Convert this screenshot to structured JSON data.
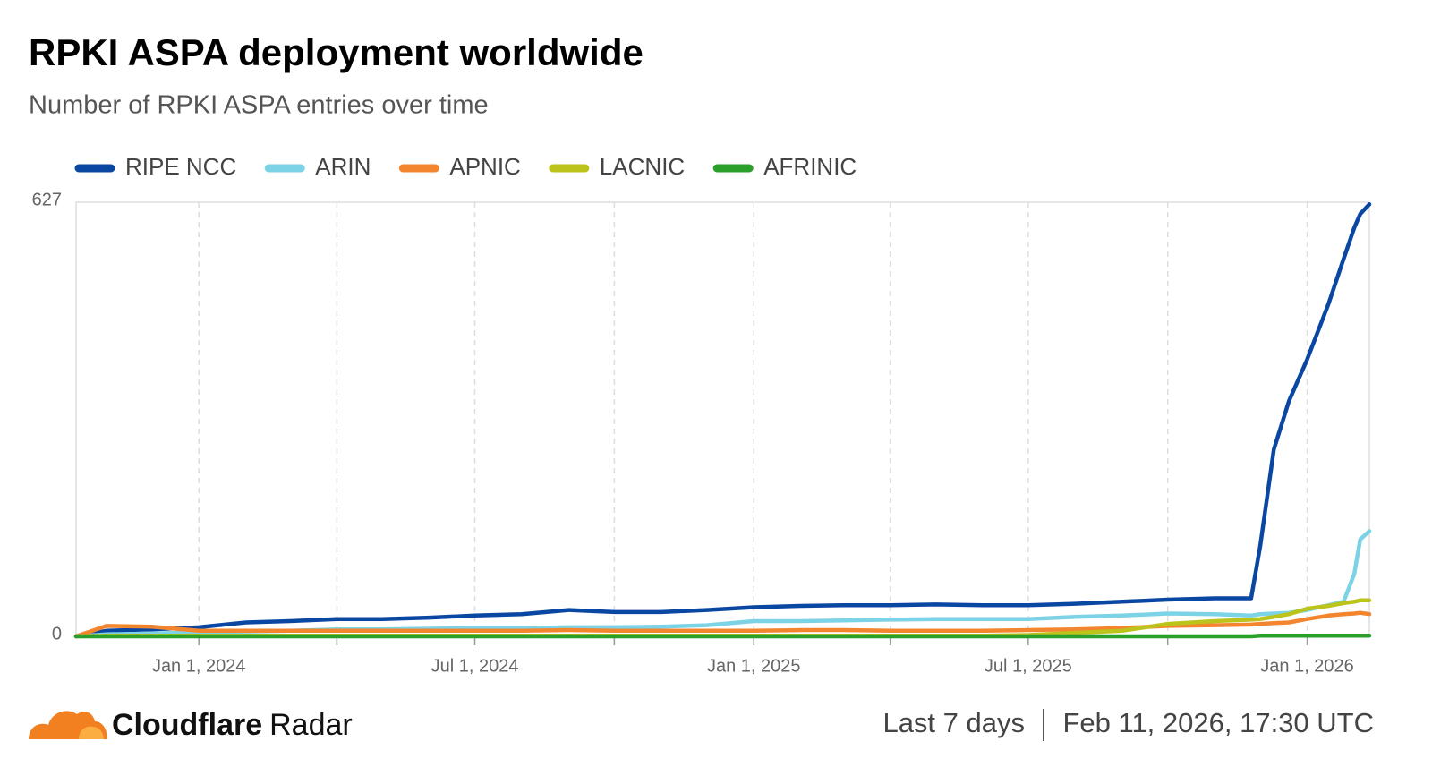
{
  "chart_data": {
    "type": "line",
    "title": "RPKI ASPA deployment worldwide",
    "subtitle": "Number of RPKI ASPA entries over time",
    "x": [
      "2023-10-12",
      "2023-11-01",
      "2023-12-01",
      "2024-01-01",
      "2024-02-01",
      "2024-03-01",
      "2024-04-01",
      "2024-05-01",
      "2024-06-01",
      "2024-07-01",
      "2024-08-01",
      "2024-09-01",
      "2024-10-01",
      "2024-11-01",
      "2024-12-01",
      "2025-01-01",
      "2025-02-01",
      "2025-03-01",
      "2025-04-01",
      "2025-05-01",
      "2025-06-01",
      "2025-07-01",
      "2025-08-01",
      "2025-09-01",
      "2025-10-01",
      "2025-11-01",
      "2025-11-25",
      "2025-12-01",
      "2025-12-10",
      "2025-12-20",
      "2026-01-01",
      "2026-01-15",
      "2026-01-25",
      "2026-02-01",
      "2026-02-05",
      "2026-02-11"
    ],
    "series": [
      {
        "name": "RIPE NCC",
        "color": "#0a47a3",
        "values": [
          0,
          8,
          10,
          13,
          20,
          22,
          25,
          25,
          27,
          30,
          32,
          38,
          35,
          35,
          38,
          42,
          44,
          45,
          45,
          46,
          45,
          45,
          47,
          50,
          53,
          55,
          55,
          130,
          270,
          340,
          400,
          480,
          545,
          590,
          610,
          624
        ]
      },
      {
        "name": "ARIN",
        "color": "#7dd3e6",
        "values": [
          0,
          3,
          4,
          6,
          7,
          8,
          10,
          10,
          11,
          12,
          12,
          13,
          13,
          14,
          16,
          22,
          22,
          23,
          24,
          25,
          25,
          25,
          28,
          30,
          33,
          32,
          30,
          32,
          33,
          34,
          38,
          45,
          50,
          90,
          140,
          152
        ]
      },
      {
        "name": "APNIC",
        "color": "#f3852f",
        "values": [
          0,
          15,
          14,
          8,
          8,
          8,
          8,
          8,
          8,
          8,
          8,
          9,
          8,
          8,
          8,
          8,
          9,
          9,
          8,
          8,
          8,
          9,
          10,
          12,
          15,
          16,
          17,
          18,
          19,
          20,
          25,
          30,
          32,
          33,
          34,
          32
        ]
      },
      {
        "name": "LACNIC",
        "color": "#bcc31a",
        "values": [
          0,
          1,
          1,
          1,
          1,
          1,
          1,
          1,
          1,
          1,
          1,
          1,
          1,
          1,
          1,
          1,
          1,
          1,
          1,
          1,
          1,
          2,
          5,
          8,
          18,
          22,
          24,
          25,
          28,
          32,
          40,
          44,
          48,
          50,
          52,
          52
        ]
      },
      {
        "name": "AFRINIC",
        "color": "#2aa02a",
        "values": [
          0,
          0,
          0,
          0,
          0,
          0,
          0,
          0,
          0,
          0,
          0,
          0,
          0,
          0,
          0,
          0,
          0,
          0,
          0,
          0,
          0,
          0,
          0,
          0,
          0,
          0,
          0,
          1,
          1,
          1,
          1,
          1,
          1,
          1,
          1,
          1
        ]
      }
    ],
    "xlim": [
      "2023-10-12",
      "2026-02-11"
    ],
    "xticks": [
      {
        "value": "2024-01-01",
        "label": "Jan 1, 2024"
      },
      {
        "value": "2024-04-01",
        "label": null
      },
      {
        "value": "2024-07-01",
        "label": "Jul 1, 2024"
      },
      {
        "value": "2024-10-01",
        "label": null
      },
      {
        "value": "2025-01-01",
        "label": "Jan 1, 2025"
      },
      {
        "value": "2025-04-01",
        "label": null
      },
      {
        "value": "2025-07-01",
        "label": "Jul 1, 2025"
      },
      {
        "value": "2025-10-01",
        "label": null
      },
      {
        "value": "2026-01-01",
        "label": "Jan 1, 2026"
      }
    ],
    "ylim": [
      0,
      627
    ],
    "yticks": [
      0,
      627
    ],
    "grid": true
  },
  "footer": {
    "brand_bold": "Cloudflare",
    "brand": "Radar",
    "range": "Last 7 days",
    "timestamp": "Feb 11, 2026, 17:30 UTC"
  }
}
